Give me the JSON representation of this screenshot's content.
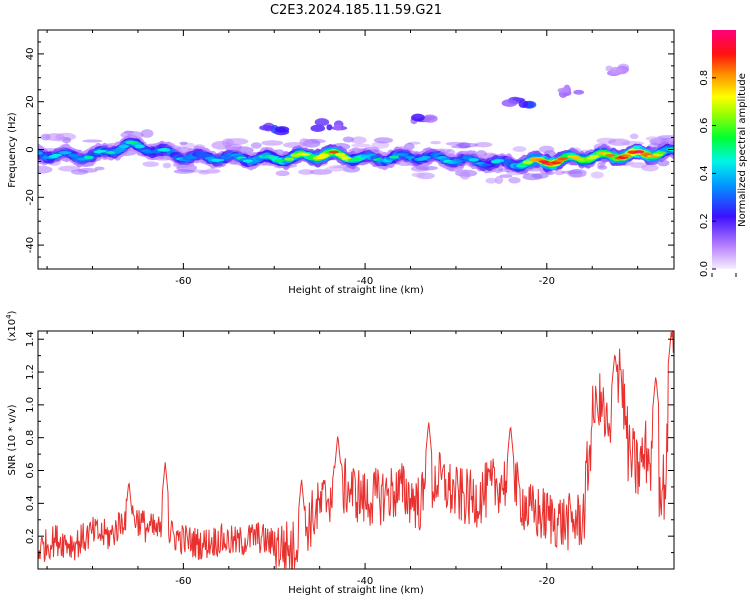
{
  "title": "C2E3.2024.185.11.59.G21",
  "chart_data": [
    {
      "type": "heatmap",
      "xlabel": "Height of straight line (km)",
      "ylabel": "Frequency (Hz)",
      "xlim": [
        -76,
        -6
      ],
      "ylim": [
        -50,
        50
      ],
      "x_ticks": [
        -60,
        -40,
        -20
      ],
      "y_ticks": [
        -40,
        -20,
        0,
        20,
        40
      ],
      "colorbar": {
        "label": "Normalized spectral amplitude",
        "range": [
          0,
          1
        ],
        "ticks": [
          "0.0",
          "0.2",
          "0.4",
          "0.6",
          "0.8"
        ],
        "colormap": "rainbow (violet-blue-cyan-green-yellow-red-magenta)"
      },
      "trace": {
        "description_points_x": [
          -76,
          -70,
          -66,
          -60,
          -50,
          -44,
          -40,
          -34,
          -28,
          -24,
          -20,
          -15,
          -10,
          -6
        ],
        "center_frequency_hz": [
          -2,
          -3,
          2,
          -3,
          -4,
          -2,
          -4,
          -3,
          -5,
          -6,
          -5,
          -3,
          -2,
          -1
        ],
        "peak_amplitude": [
          0.35,
          0.4,
          0.45,
          0.35,
          0.45,
          0.85,
          0.45,
          0.4,
          0.35,
          0.4,
          0.9,
          0.6,
          1.0,
          0.4
        ]
      },
      "scattered_features": [
        {
          "x": -23,
          "y": 20,
          "amplitude": 0.25
        },
        {
          "x": -17,
          "y": 24,
          "amplitude": 0.15
        },
        {
          "x": -34,
          "y": 12,
          "amplitude": 0.2
        },
        {
          "x": -44,
          "y": 10,
          "amplitude": 0.2
        },
        {
          "x": -50,
          "y": 8,
          "amplitude": 0.25
        },
        {
          "x": -12,
          "y": 33,
          "amplitude": 0.1
        }
      ]
    },
    {
      "type": "line",
      "xlabel": "Height of straight line (km)",
      "ylabel": "SNR (10 * v/v)",
      "y_multiplier_label": "(x10",
      "y_multiplier_exp": "4",
      "xlim": [
        -76,
        -6
      ],
      "ylim": [
        0,
        1.45
      ],
      "x_ticks": [
        -60,
        -40,
        -20
      ],
      "y_ticks": [
        "0.2",
        "0.4",
        "0.6",
        "0.8",
        "1.0",
        "1.2",
        "1.4"
      ],
      "color": "#e8312e",
      "x": [
        -76,
        -74,
        -72,
        -70,
        -68,
        -66,
        -64,
        -62,
        -60,
        -58,
        -56,
        -54,
        -52,
        -50,
        -48,
        -46,
        -44,
        -42,
        -40,
        -38,
        -36,
        -34,
        -32,
        -30,
        -28,
        -26,
        -24,
        -22,
        -20,
        -18,
        -16,
        -15,
        -14,
        -13,
        -12,
        -11,
        -10,
        -9,
        -8,
        -7,
        -6
      ],
      "y": [
        0.12,
        0.18,
        0.15,
        0.22,
        0.2,
        0.35,
        0.25,
        0.22,
        0.18,
        0.15,
        0.18,
        0.16,
        0.2,
        0.15,
        0.12,
        0.3,
        0.45,
        0.5,
        0.42,
        0.45,
        0.48,
        0.4,
        0.55,
        0.45,
        0.42,
        0.5,
        0.55,
        0.35,
        0.32,
        0.28,
        0.3,
        0.9,
        1.0,
        0.75,
        1.3,
        0.7,
        0.6,
        0.72,
        0.55,
        0.5,
        1.4
      ],
      "peaks": [
        {
          "x": -66,
          "y": 0.54
        },
        {
          "x": -62,
          "y": 0.65
        },
        {
          "x": -47,
          "y": 0.55
        },
        {
          "x": -43,
          "y": 0.82
        },
        {
          "x": -33,
          "y": 0.9
        },
        {
          "x": -24,
          "y": 0.88
        },
        {
          "x": -14.5,
          "y": 1.02
        },
        {
          "x": -12.5,
          "y": 1.32
        },
        {
          "x": -8,
          "y": 1.18
        },
        {
          "x": -6.3,
          "y": 1.45
        }
      ]
    }
  ]
}
